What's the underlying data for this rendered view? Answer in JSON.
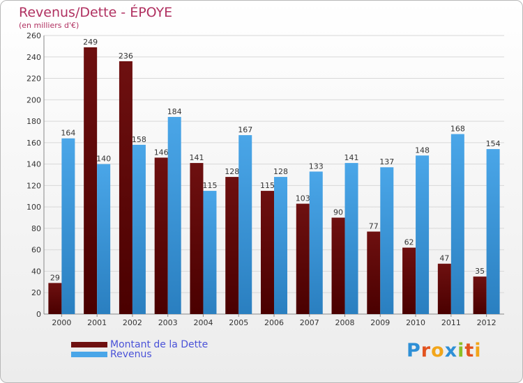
{
  "header": {
    "title": "Revenus/Dette - ÉPOYE",
    "subtitle": "(en milliers d'€)"
  },
  "legend": {
    "debt_label": "Montant de la Dette",
    "revenue_label": "Revenus"
  },
  "logo": {
    "text": "Proxiti",
    "letters": [
      {
        "ch": "P",
        "color": "#2e8fd6"
      },
      {
        "ch": "r",
        "color": "#e2531f"
      },
      {
        "ch": "o",
        "color": "#f2a51a"
      },
      {
        "ch": "x",
        "color": "#2e8fd6"
      },
      {
        "ch": "i",
        "color": "#8cbf26"
      },
      {
        "ch": "t",
        "color": "#e2531f"
      },
      {
        "ch": "i",
        "color": "#f2a51a"
      }
    ]
  },
  "colors": {
    "debt": "#6e1010",
    "debt_dark": "#4a0000",
    "revenue": "#4aa6e8",
    "revenue_dark": "#2a7fc0",
    "grid": "#d8d8d8",
    "axis_text": "#333333"
  },
  "chart_data": {
    "type": "bar",
    "title": "Revenus/Dette - ÉPOYE",
    "subtitle": "(en milliers d'€)",
    "categories": [
      "2000",
      "2001",
      "2002",
      "2003",
      "2004",
      "2005",
      "2006",
      "2007",
      "2008",
      "2009",
      "2010",
      "2011",
      "2012"
    ],
    "series": [
      {
        "name": "Montant de la Dette",
        "values": [
          29,
          249,
          236,
          146,
          141,
          128,
          115,
          103,
          90,
          77,
          62,
          47,
          35
        ]
      },
      {
        "name": "Revenus",
        "values": [
          164,
          140,
          158,
          184,
          115,
          167,
          128,
          133,
          141,
          137,
          148,
          168,
          154
        ]
      }
    ],
    "ylim": [
      0,
      260
    ],
    "yticks": [
      0,
      20,
      40,
      60,
      80,
      100,
      120,
      140,
      160,
      180,
      200,
      220,
      240,
      260
    ],
    "grid": true,
    "legend_position": "bottom-left"
  }
}
